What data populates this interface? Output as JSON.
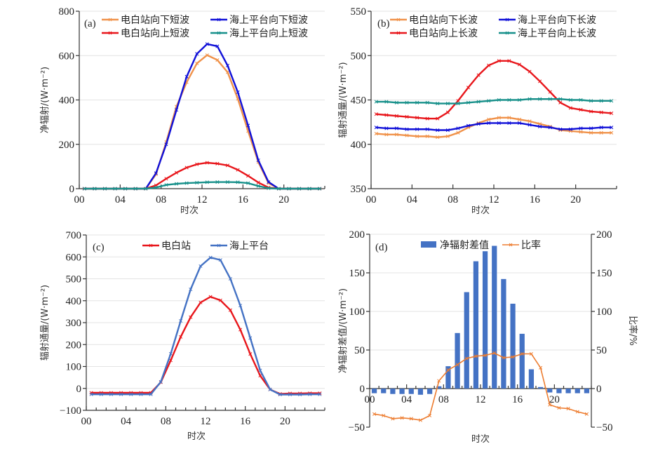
{
  "chart_data": [
    {
      "id": "a",
      "type": "line",
      "panel_label": "(a)",
      "title": "",
      "xlabel": "时次",
      "ylabel": "净辐射/(W·m⁻²)",
      "ylim": [
        0,
        800
      ],
      "yticks": [
        0,
        200,
        400,
        600,
        800
      ],
      "xlim": [
        0,
        24
      ],
      "xtick_labels": [
        "00",
        "04",
        "08",
        "12",
        "16",
        "20"
      ],
      "xticks": [
        0,
        4,
        8,
        12,
        16,
        20
      ],
      "grid": true,
      "legend": "top-right",
      "x": [
        0.5,
        1.5,
        2.5,
        3.5,
        4.5,
        5.5,
        6.5,
        7.5,
        8.5,
        9.5,
        10.5,
        11.5,
        12.5,
        13.5,
        14.5,
        15.5,
        16.5,
        17.5,
        18.5,
        19.5,
        20.5,
        21.5,
        22.5,
        23.5
      ],
      "series": [
        {
          "name": "电白站向下短波",
          "color": "#F0924A",
          "values": [
            0,
            0,
            0,
            0,
            0,
            0,
            0,
            65,
            210,
            370,
            480,
            565,
            602,
            580,
            525,
            405,
            260,
            120,
            25,
            0,
            0,
            0,
            0,
            0
          ]
        },
        {
          "name": "海上平台向下短波",
          "color": "#1010D8",
          "values": [
            0,
            0,
            0,
            0,
            0,
            0,
            0,
            70,
            200,
            355,
            505,
            608,
            652,
            642,
            555,
            435,
            285,
            128,
            30,
            0,
            0,
            0,
            0,
            0
          ]
        },
        {
          "name": "电白站向上短波",
          "color": "#E8161B",
          "values": [
            0,
            0,
            0,
            0,
            0,
            0,
            0,
            15,
            45,
            72,
            95,
            110,
            117,
            113,
            105,
            85,
            58,
            28,
            5,
            0,
            0,
            0,
            0,
            0
          ]
        },
        {
          "name": "海上平台向上短波",
          "color": "#17908A",
          "values": [
            0,
            0,
            0,
            0,
            0,
            0,
            0,
            5,
            17,
            22,
            25,
            27,
            29,
            30,
            30,
            29,
            25,
            12,
            2,
            0,
            0,
            0,
            0,
            0
          ]
        }
      ]
    },
    {
      "id": "b",
      "type": "line",
      "panel_label": "(b)",
      "title": "",
      "xlabel": "时次",
      "ylabel": "辐射通量/(W·m⁻²)",
      "ylim": [
        350,
        550
      ],
      "yticks": [
        350,
        400,
        450,
        500,
        550
      ],
      "xlim": [
        0,
        24
      ],
      "xtick_labels": [
        "00",
        "04",
        "08",
        "12",
        "16",
        "20"
      ],
      "xticks": [
        0,
        4,
        8,
        12,
        16,
        20
      ],
      "grid": true,
      "legend": "top-right",
      "x": [
        0.5,
        1.5,
        2.5,
        3.5,
        4.5,
        5.5,
        6.5,
        7.5,
        8.5,
        9.5,
        10.5,
        11.5,
        12.5,
        13.5,
        14.5,
        15.5,
        16.5,
        17.5,
        18.5,
        19.5,
        20.5,
        21.5,
        22.5,
        23.5
      ],
      "series": [
        {
          "name": "电白站向下长波",
          "color": "#F0924A",
          "values": [
            412,
            411,
            411,
            410,
            409,
            409,
            408,
            409,
            413,
            419,
            424,
            428,
            430,
            430,
            428,
            426,
            423,
            420,
            416,
            415,
            414,
            413,
            413,
            413
          ]
        },
        {
          "name": "海上平台向下长波",
          "color": "#1010D8",
          "values": [
            419,
            418,
            418,
            417,
            417,
            417,
            416,
            416,
            418,
            421,
            423,
            424,
            424,
            424,
            424,
            422,
            420,
            419,
            417,
            417,
            418,
            418,
            419,
            419
          ]
        },
        {
          "name": "电白站向上长波",
          "color": "#E8161B",
          "values": [
            434,
            433,
            432,
            431,
            430,
            429,
            429,
            436,
            449,
            464,
            478,
            489,
            494,
            494,
            490,
            482,
            471,
            459,
            447,
            441,
            439,
            437,
            436,
            435
          ]
        },
        {
          "name": "海上平台向上长波",
          "color": "#17908A",
          "values": [
            448,
            448,
            447,
            447,
            447,
            447,
            446,
            446,
            446,
            447,
            448,
            449,
            450,
            450,
            450,
            451,
            451,
            451,
            451,
            450,
            450,
            449,
            449,
            449
          ]
        }
      ]
    },
    {
      "id": "c",
      "type": "line",
      "panel_label": "(c)",
      "title": "",
      "xlabel": "时次",
      "ylabel": "辐射通量/(W·m⁻²)",
      "ylim": [
        -100,
        700
      ],
      "yticks": [
        -100,
        0,
        100,
        200,
        300,
        400,
        500,
        600,
        700
      ],
      "xlim": [
        0,
        24
      ],
      "xtick_labels": [
        "00",
        "04",
        "08",
        "12",
        "16",
        "20"
      ],
      "xticks": [
        0,
        4,
        8,
        12,
        16,
        20
      ],
      "grid": true,
      "legend": "top-center",
      "x": [
        0.5,
        1.5,
        2.5,
        3.5,
        4.5,
        5.5,
        6.5,
        7.5,
        8.5,
        9.5,
        10.5,
        11.5,
        12.5,
        13.5,
        14.5,
        15.5,
        16.5,
        17.5,
        18.5,
        19.5,
        20.5,
        21.5,
        22.5,
        23.5
      ],
      "series": [
        {
          "name": "电白站",
          "color": "#E8161B",
          "values": [
            -20,
            -20,
            -20,
            -20,
            -20,
            -20,
            -20,
            28,
            128,
            235,
            325,
            392,
            418,
            402,
            357,
            268,
            157,
            58,
            -5,
            -25,
            -23,
            -23,
            -22,
            -22
          ]
        },
        {
          "name": "海上平台",
          "color": "#4472C4",
          "values": [
            -27,
            -27,
            -27,
            -27,
            -27,
            -27,
            -27,
            30,
            158,
            308,
            452,
            558,
            597,
            586,
            500,
            378,
            230,
            82,
            -5,
            -28,
            -28,
            -28,
            -27,
            -27
          ]
        }
      ]
    },
    {
      "id": "d",
      "type": "bar",
      "panel_label": "(d)",
      "title": "",
      "xlabel": "时次",
      "ylabel": "净辐射差值/(W·m⁻²)",
      "ylabel_right": "比率/%",
      "ylim": [
        -50,
        200
      ],
      "yticks": [
        -50,
        0,
        50,
        100,
        150,
        200
      ],
      "ylim_right": [
        -50,
        200
      ],
      "yticks_right": [
        -50,
        0,
        50,
        100,
        150,
        200
      ],
      "xlim": [
        0,
        24
      ],
      "xtick_labels": [
        "00",
        "04",
        "08",
        "12",
        "16",
        "20"
      ],
      "xticks": [
        0,
        4,
        8,
        12,
        16,
        20
      ],
      "grid": true,
      "legend": "top-center",
      "x": [
        0.5,
        1.5,
        2.5,
        3.5,
        4.5,
        5.5,
        6.5,
        7.5,
        8.5,
        9.5,
        10.5,
        11.5,
        12.5,
        13.5,
        14.5,
        15.5,
        16.5,
        17.5,
        18.5,
        19.5,
        20.5,
        21.5,
        22.5,
        23.5
      ],
      "series": [
        {
          "name": "净辐射差值",
          "type": "bar",
          "axis": "left",
          "color": "#4472C4",
          "values": [
            -6,
            -6,
            -7,
            -7,
            -7,
            -8,
            -7,
            3,
            29,
            72,
            125,
            165,
            178,
            185,
            142,
            110,
            71,
            25,
            2,
            -5,
            -6,
            -6,
            -6,
            -6
          ]
        },
        {
          "name": "比率",
          "type": "line",
          "axis": "right",
          "color": "#ED7D31",
          "values": [
            -33,
            -35,
            -39,
            -38,
            -39,
            -41,
            -35,
            10,
            24,
            31,
            39,
            42,
            43,
            46,
            40,
            41,
            45,
            45,
            27,
            -21,
            -25,
            -26,
            -30,
            -33
          ]
        }
      ]
    }
  ]
}
